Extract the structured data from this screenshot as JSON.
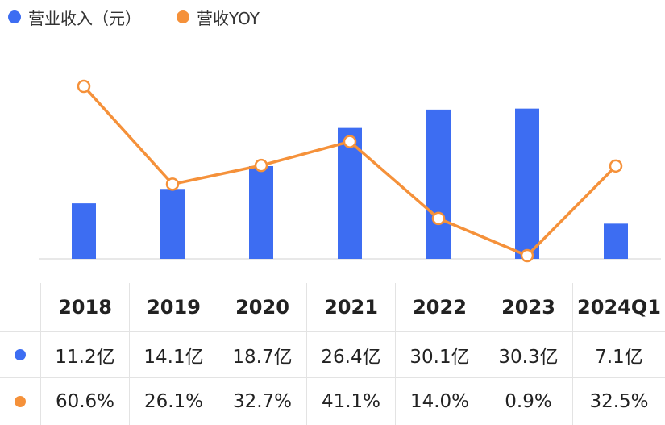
{
  "legend": {
    "revenue": {
      "label": "营业收入（元）",
      "color": "#3d6df2"
    },
    "yoy": {
      "label": "营收YOY",
      "color": "#f5913a"
    }
  },
  "chart_data": {
    "type": "bar",
    "categories": [
      "2018",
      "2019",
      "2020",
      "2021",
      "2022",
      "2023",
      "2024Q1"
    ],
    "series": [
      {
        "name": "营业收入（元）",
        "type": "bar",
        "values": [
          11.2,
          14.1,
          18.7,
          26.4,
          30.1,
          30.3,
          7.1
        ],
        "color": "#3d6df2"
      },
      {
        "name": "营收YOY",
        "type": "line",
        "values": [
          60.6,
          26.1,
          32.7,
          41.1,
          14.0,
          0.9,
          32.5
        ],
        "color": "#f5913a"
      }
    ],
    "grid": false,
    "legend_position": "top-left"
  },
  "table": {
    "headers": [
      "2018",
      "2019",
      "2020",
      "2021",
      "2022",
      "2023",
      "2024Q1"
    ],
    "revenue_labels": [
      "11.2亿",
      "14.1亿",
      "18.7亿",
      "26.4亿",
      "30.1亿",
      "30.3亿",
      "7.1亿"
    ],
    "yoy_labels": [
      "60.6%",
      "26.1%",
      "32.7%",
      "41.1%",
      "14.0%",
      "0.9%",
      "32.5%"
    ]
  }
}
